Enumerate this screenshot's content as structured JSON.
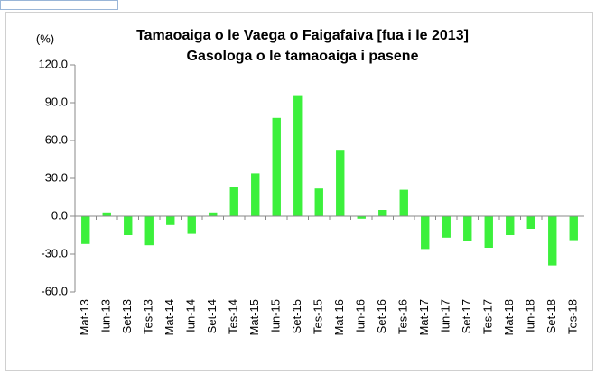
{
  "chart_data": {
    "type": "bar",
    "title": "Tamaoaiga  o le Vaega o Faigafaiva [fua i le 2013]",
    "subtitle": "Gasologa o le tamaoaiga i pasene",
    "ylabel": "(%)",
    "categories": [
      "Mat-13",
      "Iun-13",
      "Set-13",
      "Tes-13",
      "Mat-14",
      "Iun-14",
      "Set-14",
      "Tes-14",
      "Mat-15",
      "Iun-15",
      "Set-15",
      "Tes-15",
      "Mat-16",
      "Iun-16",
      "Set-16",
      "Tes-16",
      "Mat-17",
      "Iun-17",
      "Set-17",
      "Tes-17",
      "Mat-18",
      "Iun-18",
      "Set-18",
      "Tes-18"
    ],
    "values": [
      -22,
      3,
      -15,
      -23,
      -7,
      -14,
      3,
      23,
      34,
      78,
      96,
      22,
      52,
      -2,
      5,
      21,
      -26,
      -17,
      -20,
      -25,
      -15,
      -10,
      -39,
      -19
    ],
    "color": "#3cf03c",
    "ylim": [
      -60,
      120
    ],
    "yticks": [
      {
        "value": -60,
        "label": "-60.0"
      },
      {
        "value": -30,
        "label": "-30.0"
      },
      {
        "value": 0,
        "label": "0.0"
      },
      {
        "value": 30,
        "label": "30.0"
      },
      {
        "value": 60,
        "label": "60.0"
      },
      {
        "value": 90,
        "label": "90.0"
      },
      {
        "value": 120,
        "label": "120.0"
      }
    ],
    "grid": false
  }
}
